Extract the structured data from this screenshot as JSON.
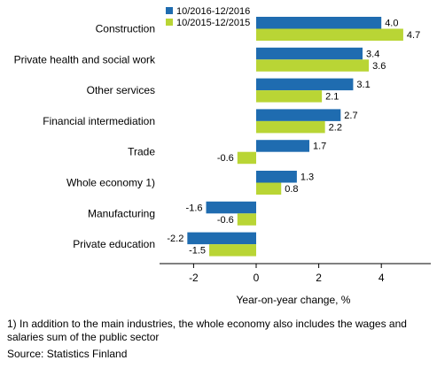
{
  "chart_data": {
    "type": "bar",
    "orientation": "horizontal",
    "categories": [
      "Construction",
      "Private health and social work",
      "Other services",
      "Financial intermediation",
      "Trade",
      "Whole economy 1)",
      "Manufacturing",
      "Private education"
    ],
    "series": [
      {
        "name": "10/2016-12/2016",
        "color": "#1f6cb0",
        "values": [
          4.0,
          3.4,
          3.1,
          2.7,
          1.7,
          1.3,
          -1.6,
          -2.2
        ],
        "labels": [
          "4.0",
          "3.4",
          "3.1",
          "2.7",
          "1.7",
          "1.3",
          "-1.6",
          "-2.2"
        ]
      },
      {
        "name": "10/2015-12/2015",
        "color": "#b9d535",
        "values": [
          4.7,
          3.6,
          2.1,
          2.2,
          -0.6,
          0.8,
          -0.6,
          -1.5
        ],
        "labels": [
          "4.7",
          "3.6",
          "2.1",
          "2.2",
          "-0.6",
          "0.8",
          "-0.6",
          "-1.5"
        ]
      }
    ],
    "xlabel": "Year-on-year change, %",
    "xlim": [
      -3,
      5.8
    ],
    "xticks": [
      -2,
      0,
      2,
      4
    ],
    "grid": false,
    "legend_position": "top-left"
  },
  "footnote": "1) In addition to the main industries, the whole economy also includes the wages and salaries sum of the public sector",
  "source": "Source: Statistics Finland"
}
